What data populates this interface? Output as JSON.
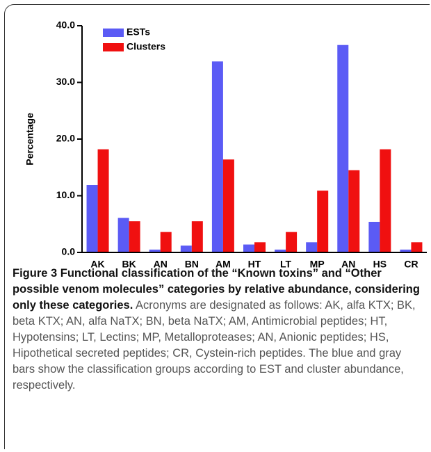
{
  "chart_data": {
    "type": "bar",
    "y_label": "Percentage",
    "categories": [
      "AK",
      "BK",
      "AN",
      "BN",
      "AM",
      "HT",
      "LT",
      "MP",
      "AN",
      "HS",
      "CR"
    ],
    "series": [
      {
        "name": "ESTs",
        "color": "#5b5bf5",
        "values": [
          11.9,
          6.1,
          0.5,
          1.2,
          33.7,
          1.4,
          0.5,
          1.8,
          36.6,
          5.4,
          0.5
        ]
      },
      {
        "name": "Clusters",
        "color": "#f01010",
        "values": [
          18.2,
          5.5,
          3.6,
          5.5,
          16.4,
          1.8,
          3.6,
          10.9,
          14.5,
          18.2,
          1.8
        ]
      }
    ],
    "ylim": [
      0,
      40
    ],
    "yticks": [
      {
        "value": 0,
        "label": "0.0"
      },
      {
        "value": 10,
        "label": "10.0"
      },
      {
        "value": 20,
        "label": "20.0"
      },
      {
        "value": 30,
        "label": "30.0"
      },
      {
        "value": 40,
        "label": "40.0"
      }
    ],
    "legend": "upper left"
  },
  "caption": {
    "title": "Figure 3 Functional classification of the “Known toxins” and “Other possible venom molecules” categories by relative abundance, considering only these categories.",
    "text": "Acronyms are designated as follows: AK, alfa KTX; BK, beta KTX; AN, alfa NaTX; BN, beta NaTX; AM, Antimicrobial peptides; HT, Hypotensins; LT, Lectins; MP, Metalloproteases; AN, Anionic peptides; HS, Hipothetical secreted peptides; CR, Cystein-rich peptides. The blue and gray bars show the classification groups according to EST and cluster abundance, respectively."
  }
}
